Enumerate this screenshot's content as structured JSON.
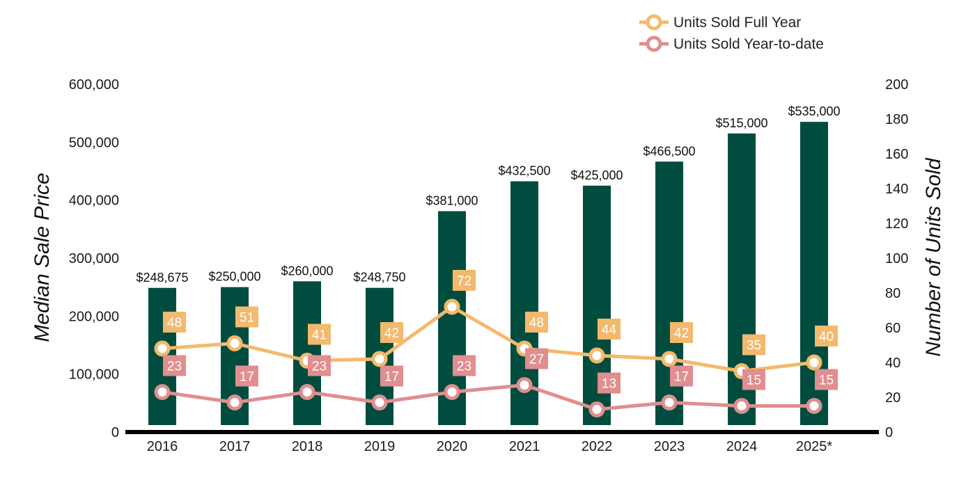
{
  "chart_data": {
    "type": "bar",
    "categories": [
      "2016",
      "2017",
      "2018",
      "2019",
      "2020",
      "2021",
      "2022",
      "2023",
      "2024",
      "2025*"
    ],
    "bar_series": {
      "values": [
        248675,
        250000,
        260000,
        248750,
        381000,
        432500,
        425000,
        466500,
        515000,
        535000
      ],
      "labels": [
        "$248,675",
        "$250,000",
        "$260,000",
        "$248,750",
        "$381,000",
        "$432,500",
        "$425,000",
        "$466,500",
        "$515,000",
        "$535,000"
      ],
      "color": "#004d40"
    },
    "line_series": [
      {
        "name": "Units Sold Full Year",
        "values": [
          48,
          51,
          41,
          42,
          72,
          48,
          44,
          42,
          35,
          40
        ],
        "color": "#f3b96d"
      },
      {
        "name": "Units Sold Year-to-date",
        "values": [
          23,
          17,
          23,
          17,
          23,
          27,
          13,
          17,
          15,
          15
        ],
        "color": "#e08e8f"
      }
    ],
    "ylabel": "Median Sale Price",
    "y2label": "Number of Units Sold",
    "ylim": [
      0,
      600000
    ],
    "y2lim": [
      0,
      200
    ],
    "yticks": [
      "0",
      "100,000",
      "200,000",
      "300,000",
      "400,000",
      "500,000",
      "600,000"
    ],
    "y2ticks": [
      "0",
      "20",
      "40",
      "60",
      "80",
      "100",
      "120",
      "140",
      "160",
      "180",
      "200"
    ],
    "legend_position": "top-right",
    "grid": false
  }
}
